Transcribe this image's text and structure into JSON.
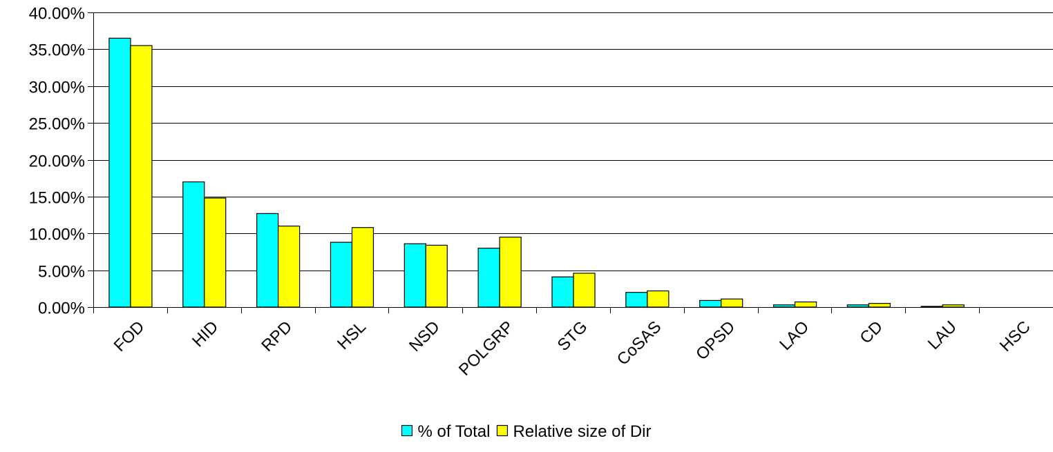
{
  "chart_data": {
    "type": "bar",
    "title": "",
    "xlabel": "",
    "ylabel": "",
    "categories": [
      "FOD",
      "HID",
      "RPD",
      "HSL",
      "NSD",
      "POLGRP",
      "STG",
      "CoSAS",
      "OPSD",
      "LAO",
      "CD",
      "LAU",
      "HSC"
    ],
    "series": [
      {
        "name": "% of Total",
        "color": "#00FFFF",
        "values": [
          36.5,
          17.0,
          12.7,
          8.8,
          8.6,
          8.0,
          4.1,
          2.0,
          0.9,
          0.3,
          0.3,
          0.1,
          0.0
        ]
      },
      {
        "name": "Relative size of Dir",
        "color": "#FFFF00",
        "values": [
          35.5,
          14.8,
          11.0,
          10.8,
          8.4,
          9.5,
          4.6,
          2.2,
          1.1,
          0.7,
          0.5,
          0.3,
          0.0
        ]
      }
    ],
    "ylim": [
      0,
      40
    ],
    "yticks": [
      0,
      5,
      10,
      15,
      20,
      25,
      30,
      35,
      40
    ],
    "ytick_labels": [
      "0.00%",
      "5.00%",
      "10.00%",
      "15.00%",
      "20.00%",
      "25.00%",
      "30.00%",
      "35.00%",
      "40.00%"
    ],
    "grid": true,
    "legend_position": "bottom-center"
  }
}
